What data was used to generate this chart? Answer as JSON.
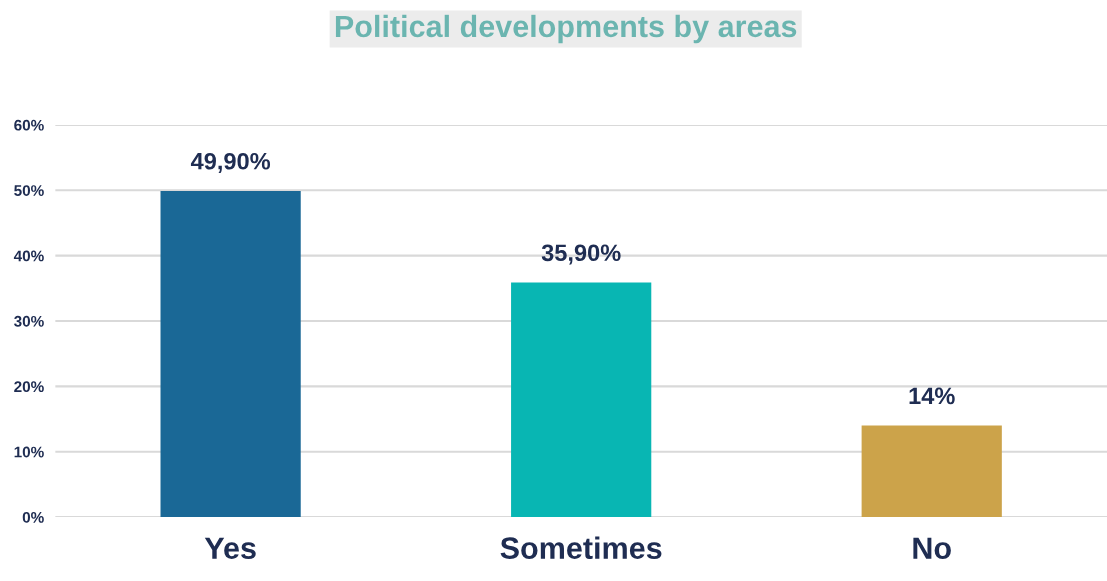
{
  "chart_data": {
    "type": "bar",
    "title": "Political developments by areas",
    "categories": [
      "Yes",
      "Sometimes",
      "No"
    ],
    "values": [
      49.9,
      35.9,
      14
    ],
    "colors": [
      "#1a6896",
      "#08b6b3",
      "#cca34a"
    ],
    "value_labels": [
      "49,90%",
      "35,90%",
      "14%"
    ],
    "ylim": [
      0,
      60
    ],
    "yticks": [
      {
        "value": 0,
        "label": "0%"
      },
      {
        "value": 10,
        "label": "10%"
      },
      {
        "value": 20,
        "label": "20%"
      },
      {
        "value": 30,
        "label": "30%"
      },
      {
        "value": 40,
        "label": "40%"
      },
      {
        "value": 50,
        "label": "50%"
      },
      {
        "value": 60,
        "label": "60%"
      }
    ],
    "grid": "y",
    "legend": false
  }
}
